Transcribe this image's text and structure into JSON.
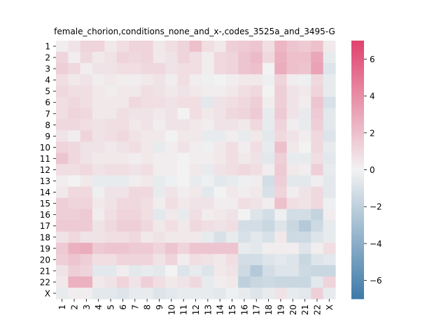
{
  "chart_data": {
    "type": "heatmap",
    "title": "female_chorion,conditions_none_and_x-,codes_3525a_and_3495-G",
    "xlabel": "",
    "ylabel": "",
    "x_labels": [
      "1",
      "2",
      "3",
      "4",
      "5",
      "6",
      "7",
      "8",
      "9",
      "10",
      "11",
      "12",
      "13",
      "14",
      "15",
      "16",
      "17",
      "18",
      "19",
      "20",
      "21",
      "22",
      "X"
    ],
    "y_labels": [
      "1",
      "2",
      "3",
      "4",
      "5",
      "6",
      "7",
      "8",
      "9",
      "10",
      "11",
      "12",
      "13",
      "14",
      "15",
      "16",
      "17",
      "18",
      "19",
      "20",
      "21",
      "22",
      "X"
    ],
    "colorbar": {
      "min": -7,
      "max": 7,
      "ticks": [
        -6,
        -4,
        -2,
        0,
        2,
        4,
        6
      ]
    },
    "colors": {
      "negative": "#3d7aa8",
      "center": "#f2f2f2",
      "positive": "#e0426e"
    },
    "values": [
      [
        0.2,
        0.6,
        1.2,
        1.2,
        0.4,
        0.8,
        1.2,
        1.2,
        0.4,
        0.8,
        1.2,
        2.0,
        0.8,
        0.4,
        1.4,
        1.6,
        1.8,
        0.8,
        2.4,
        1.8,
        1.6,
        2.0,
        0.3
      ],
      [
        1.2,
        0.2,
        1.0,
        0.4,
        0.6,
        1.2,
        1.0,
        1.2,
        0.4,
        0.6,
        1.2,
        0.8,
        0.2,
        1.0,
        1.2,
        1.8,
        2.2,
        1.0,
        2.6,
        2.0,
        2.0,
        3.0,
        -0.4
      ],
      [
        1.4,
        1.0,
        0.2,
        0.6,
        0.6,
        0.8,
        0.8,
        1.0,
        1.0,
        0.6,
        0.8,
        0.8,
        0.2,
        1.0,
        1.2,
        1.8,
        2.0,
        0.0,
        2.8,
        2.0,
        1.8,
        3.2,
        -0.8
      ],
      [
        0.8,
        0.4,
        0.6,
        0.2,
        0.4,
        0.2,
        0.2,
        0.4,
        0.6,
        0.2,
        0.8,
        0.2,
        -0.2,
        0.0,
        0.2,
        0.4,
        0.4,
        -0.2,
        1.2,
        0.2,
        -0.2,
        1.0,
        -0.4
      ],
      [
        1.0,
        0.8,
        0.8,
        0.4,
        0.2,
        0.4,
        0.4,
        0.8,
        0.6,
        0.4,
        0.6,
        0.4,
        0.2,
        0.2,
        0.4,
        0.8,
        1.0,
        0.0,
        1.4,
        0.6,
        0.4,
        1.2,
        -0.4
      ],
      [
        0.8,
        1.0,
        0.8,
        0.4,
        0.4,
        0.4,
        1.0,
        0.8,
        0.8,
        0.6,
        0.8,
        0.8,
        -0.6,
        0.6,
        0.8,
        1.0,
        1.4,
        0.2,
        1.4,
        0.6,
        0.2,
        1.8,
        -1.0
      ],
      [
        0.8,
        1.2,
        1.0,
        0.4,
        0.4,
        0.8,
        0.6,
        0.6,
        0.4,
        0.6,
        0.0,
        0.8,
        0.4,
        0.6,
        1.0,
        1.2,
        1.6,
        -0.4,
        1.6,
        0.6,
        -0.4,
        1.6,
        -0.6
      ],
      [
        1.0,
        1.0,
        0.8,
        0.6,
        0.8,
        0.8,
        0.4,
        0.6,
        0.2,
        0.6,
        0.6,
        0.4,
        0.2,
        0.6,
        0.6,
        0.4,
        1.0,
        -0.4,
        1.2,
        0.2,
        -0.4,
        1.4,
        -0.6
      ],
      [
        0.6,
        0.2,
        1.2,
        0.6,
        0.8,
        1.0,
        0.6,
        0.4,
        0.4,
        0.0,
        0.4,
        0.4,
        -0.4,
        -0.4,
        0.2,
        -0.4,
        0.4,
        -0.6,
        1.0,
        0.6,
        0.2,
        1.0,
        -0.8
      ],
      [
        1.2,
        1.0,
        0.6,
        0.6,
        0.4,
        0.6,
        0.8,
        0.4,
        -0.4,
        0.2,
        0.6,
        0.2,
        -0.2,
        0.4,
        0.8,
        0.2,
        0.8,
        -0.4,
        2.0,
        0.4,
        0.0,
        1.0,
        -0.4
      ],
      [
        1.8,
        1.0,
        0.6,
        0.4,
        0.4,
        0.4,
        0.2,
        0.4,
        0.2,
        0.2,
        0.0,
        0.2,
        0.2,
        0.4,
        0.8,
        0.4,
        0.6,
        -0.6,
        1.4,
        -0.4,
        -0.4,
        0.8,
        -0.6
      ],
      [
        0.8,
        0.8,
        1.0,
        0.6,
        0.8,
        0.8,
        0.6,
        0.8,
        0.2,
        0.2,
        0.0,
        0.4,
        -0.4,
        0.6,
        0.8,
        1.0,
        0.8,
        0.2,
        1.6,
        0.4,
        0.2,
        1.4,
        -0.4
      ],
      [
        0.2,
        0.0,
        0.4,
        -0.4,
        -0.4,
        -0.4,
        0.2,
        0.4,
        -0.4,
        -0.2,
        0.0,
        -0.4,
        -0.2,
        -0.6,
        -0.4,
        -0.2,
        0.2,
        -1.2,
        1.4,
        -0.6,
        -0.6,
        0.2,
        -0.6
      ],
      [
        0.4,
        1.0,
        1.0,
        -0.2,
        0.6,
        0.6,
        1.0,
        1.0,
        -0.4,
        0.6,
        0.2,
        0.4,
        -0.6,
        0.0,
        0.4,
        0.2,
        0.4,
        -1.0,
        1.2,
        0.2,
        0.6,
        1.0,
        -0.6
      ],
      [
        1.4,
        1.2,
        1.2,
        0.4,
        0.6,
        1.0,
        1.0,
        0.8,
        0.2,
        0.8,
        0.4,
        0.6,
        0.6,
        0.2,
        0.2,
        0.8,
        0.6,
        0.2,
        2.0,
        0.8,
        0.6,
        1.0,
        -0.2
      ],
      [
        1.4,
        1.4,
        1.6,
        0.2,
        0.8,
        1.2,
        1.2,
        0.8,
        -0.6,
        0.4,
        -0.4,
        0.8,
        0.2,
        0.4,
        0.6,
        0.0,
        -0.8,
        -1.2,
        -0.2,
        -1.2,
        -1.2,
        -1.8,
        0.2
      ],
      [
        1.6,
        1.6,
        1.6,
        0.6,
        1.0,
        1.4,
        1.4,
        1.0,
        0.4,
        0.8,
        0.4,
        1.0,
        0.8,
        0.6,
        0.8,
        -1.2,
        -1.2,
        -1.6,
        -0.8,
        -1.6,
        -2.4,
        -1.4,
        -0.4
      ],
      [
        0.6,
        1.0,
        0.6,
        0.6,
        0.8,
        0.8,
        1.0,
        0.4,
        0.6,
        0.4,
        0.4,
        0.4,
        -0.4,
        -1.0,
        -0.4,
        -1.0,
        -0.6,
        -1.0,
        0.4,
        -1.4,
        -1.4,
        -0.8,
        -0.4
      ],
      [
        1.6,
        2.6,
        2.8,
        1.6,
        1.8,
        1.8,
        1.6,
        1.6,
        1.2,
        1.8,
        1.2,
        1.8,
        1.8,
        1.8,
        1.8,
        -0.4,
        -0.6,
        0.2,
        0.2,
        0.2,
        -0.8,
        0.2,
        0.8
      ],
      [
        1.4,
        1.8,
        1.4,
        0.8,
        0.8,
        1.2,
        1.2,
        1.2,
        0.6,
        1.2,
        0.2,
        0.8,
        0.6,
        0.4,
        0.8,
        -1.2,
        -1.2,
        -0.8,
        -0.6,
        -0.8,
        -1.6,
        -0.8,
        -0.6
      ],
      [
        0.6,
        1.4,
        1.2,
        -0.6,
        -0.6,
        0.2,
        -0.6,
        -0.4,
        -0.6,
        0.0,
        -0.8,
        -0.4,
        -0.8,
        0.4,
        0.6,
        -1.4,
        -2.4,
        -1.2,
        -0.8,
        -0.8,
        -1.4,
        -1.6,
        -1.6
      ],
      [
        0.4,
        2.6,
        2.6,
        0.4,
        0.6,
        1.2,
        0.6,
        1.4,
        0.8,
        0.4,
        0.6,
        1.0,
        -0.4,
        0.2,
        0.4,
        -2.0,
        -1.6,
        -1.4,
        -1.6,
        -1.6,
        -1.6,
        -0.6,
        1.2
      ],
      [
        -0.4,
        0.2,
        0.2,
        -0.6,
        -0.6,
        -0.8,
        -0.4,
        -0.4,
        -0.8,
        -0.6,
        -0.4,
        -0.4,
        -0.4,
        -0.6,
        -0.2,
        -0.4,
        -0.8,
        -0.4,
        0.6,
        -0.4,
        -0.6,
        1.4,
        -0.4
      ]
    ]
  }
}
